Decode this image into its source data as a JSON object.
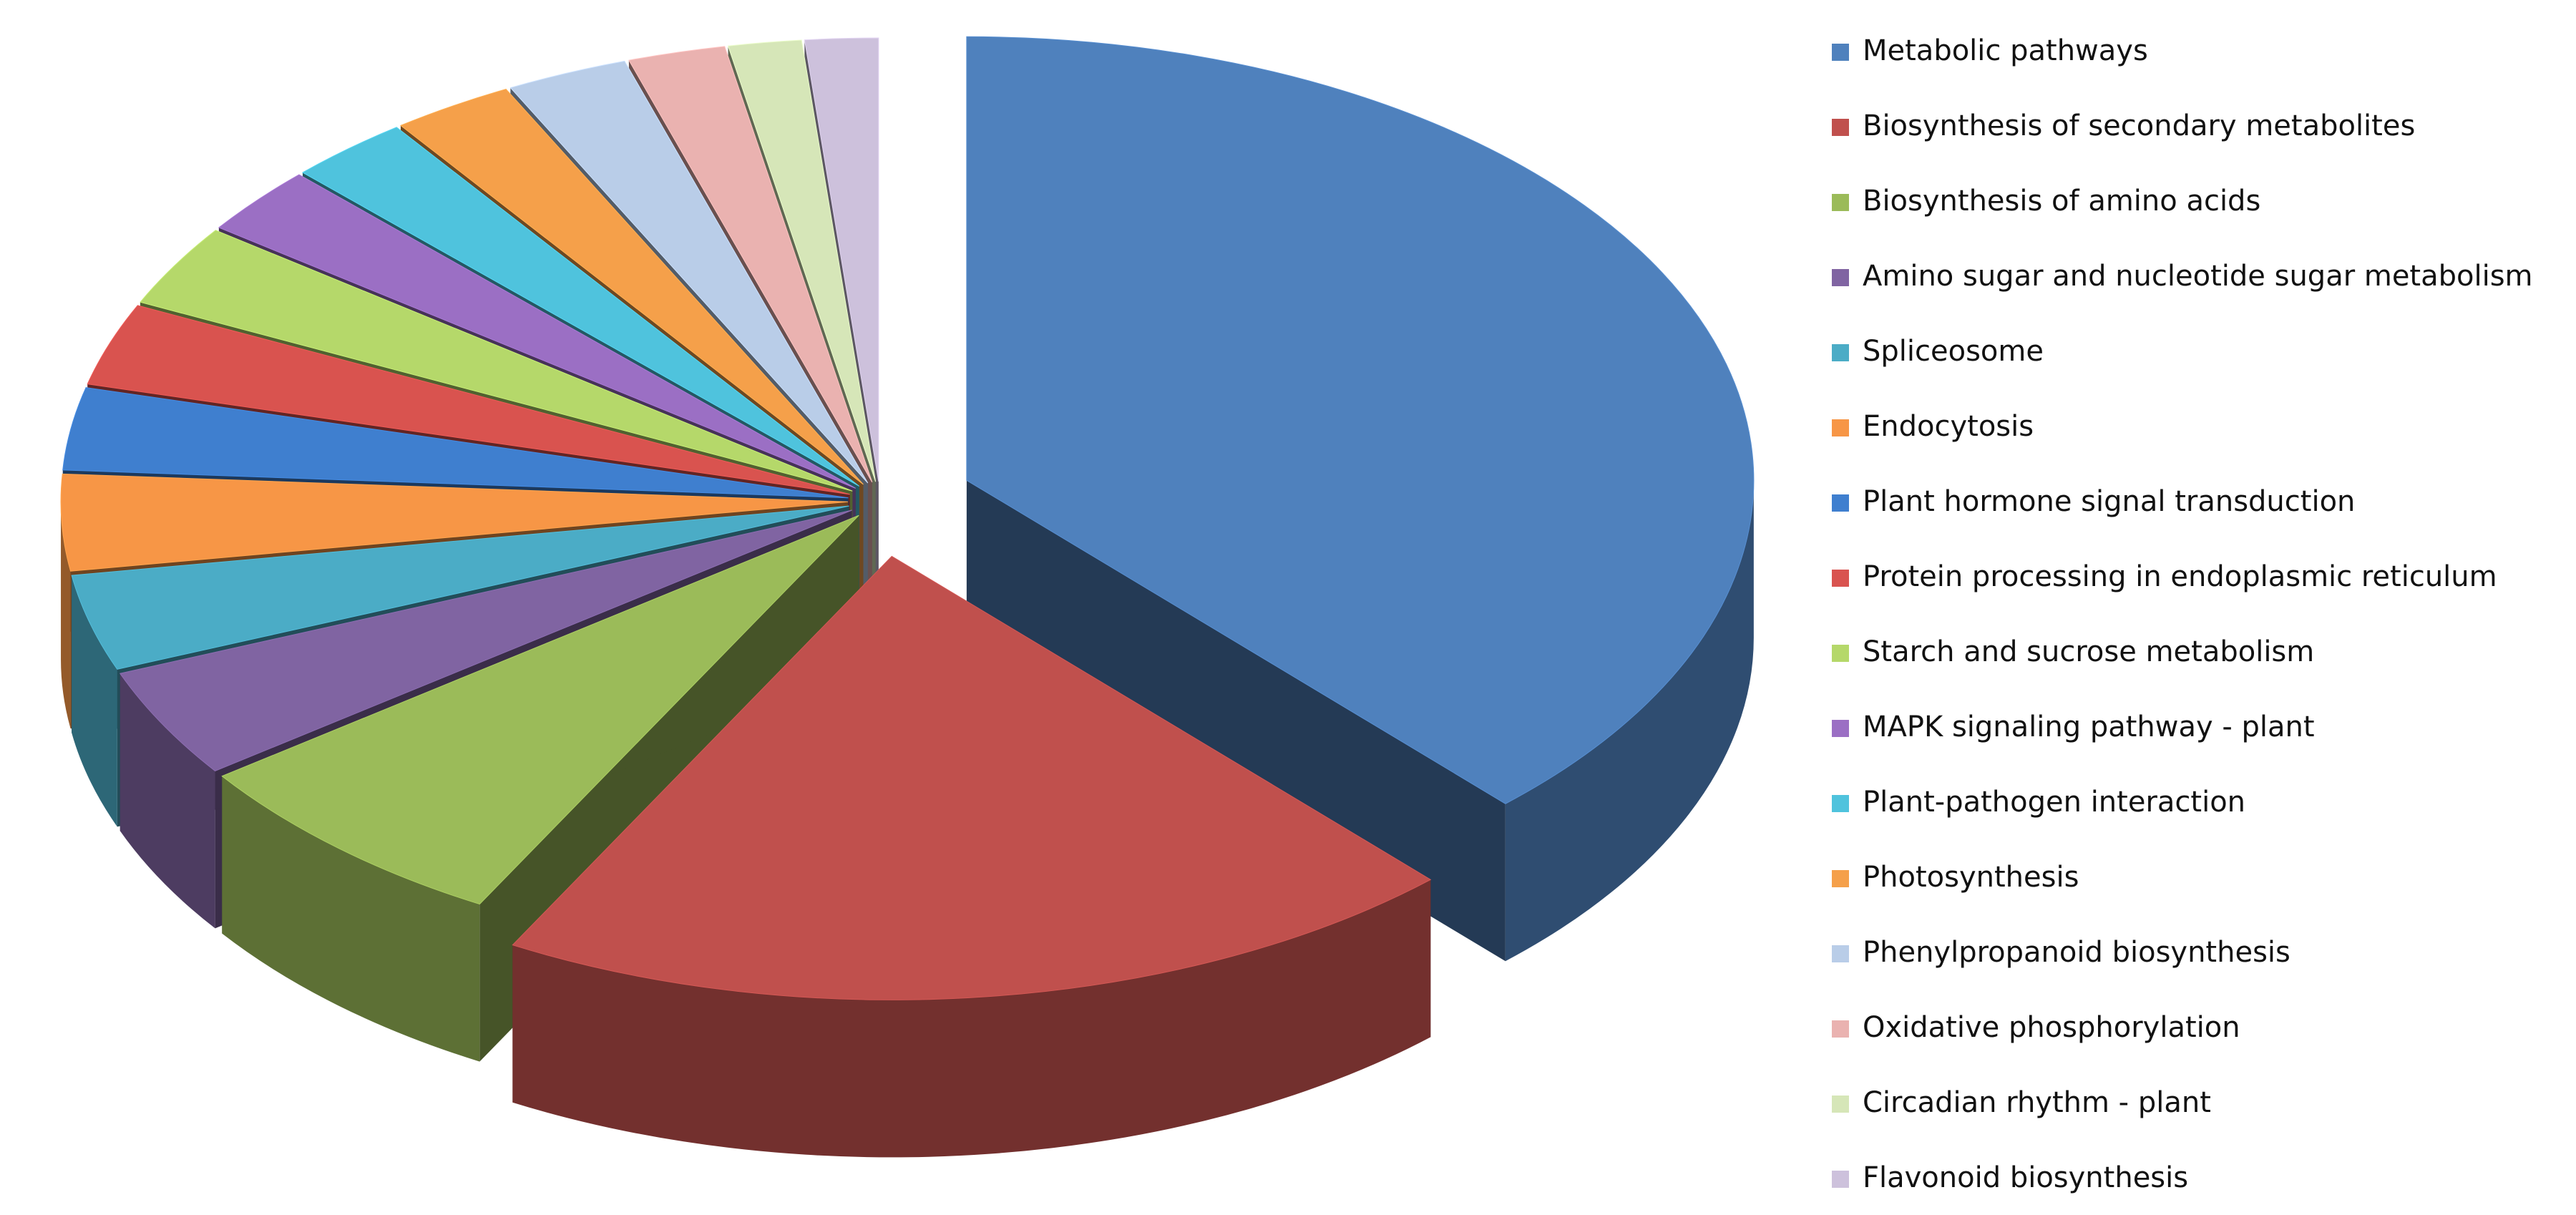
{
  "chart_data": {
    "type": "pie",
    "categories": [
      "Metabolic pathways",
      "Biosynthesis of secondary metabolites",
      "Biosynthesis of amino acids",
      "Amino sugar and nucleotide sugar metabolism",
      "Spliceosome",
      "Endocytosis",
      "Plant hormone signal transduction",
      "Protein processing in endoplasmic reticulum",
      "Starch and sucrose metabolism",
      "MAPK signaling pathway - plant",
      "Plant-pathogen interaction",
      "Photosynthesis",
      "Phenylpropanoid biosynthesis",
      "Oxidative phosphorylation",
      "Circadian rhythm - plant",
      "Flavonoid biosynthesis"
    ],
    "values": [
      38,
      20,
      7,
      4,
      3.5,
      3.5,
      3,
      3,
      3,
      2.5,
      2.5,
      2.5,
      2.5,
      2,
      1.5,
      1.5
    ],
    "colors": [
      "#4f81bd",
      "#c0504d",
      "#9bbb59",
      "#8064a2",
      "#4bacc6",
      "#f79646",
      "#3f7fcf",
      "#d9534f",
      "#b5d86a",
      "#9b6fc4",
      "#4fc3dd",
      "#f5a04a",
      "#b9cde8",
      "#eab2b0",
      "#d6e6b8",
      "#cdc1dc"
    ],
    "legend": "right"
  }
}
